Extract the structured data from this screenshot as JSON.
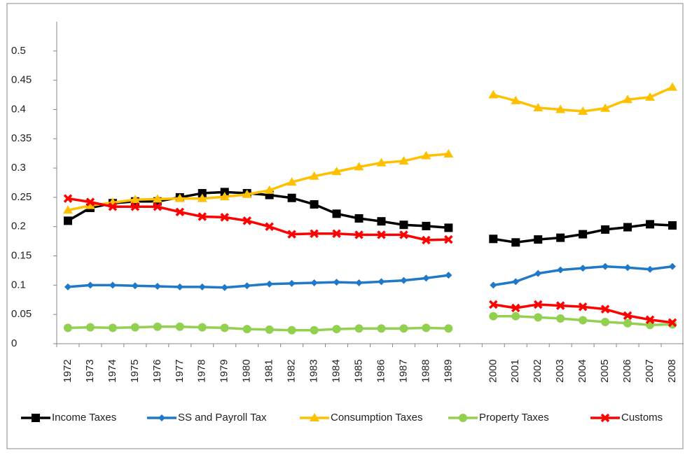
{
  "chart_data": {
    "type": "line",
    "categories": [
      "1972",
      "1973",
      "1974",
      "1975",
      "1976",
      "1977",
      "1978",
      "1979",
      "1980",
      "1981",
      "1982",
      "1983",
      "1984",
      "1985",
      "1986",
      "1987",
      "1988",
      "1989",
      null,
      "2000",
      "2001",
      "2002",
      "2003",
      "2004",
      "2005",
      "2006",
      "2007",
      "2008"
    ],
    "series": [
      {
        "name": "Income Taxes",
        "color": "#000000",
        "marker": "square",
        "values": [
          0.21,
          0.232,
          0.24,
          0.243,
          0.243,
          0.25,
          0.257,
          0.259,
          0.257,
          0.254,
          0.249,
          0.238,
          0.222,
          0.214,
          0.209,
          0.203,
          0.201,
          0.198,
          null,
          0.179,
          0.173,
          0.178,
          0.181,
          0.187,
          0.195,
          0.199,
          0.204,
          0.202
        ]
      },
      {
        "name": "SS and Payroll Tax",
        "color": "#1f78c8",
        "marker": "diamond",
        "values": [
          0.097,
          0.1,
          0.1,
          0.099,
          0.098,
          0.097,
          0.097,
          0.096,
          0.099,
          0.102,
          0.103,
          0.104,
          0.105,
          0.104,
          0.106,
          0.108,
          0.112,
          0.117,
          null,
          0.1,
          0.106,
          0.12,
          0.126,
          0.129,
          0.132,
          0.13,
          0.127,
          0.132
        ]
      },
      {
        "name": "Consumption Taxes",
        "color": "#ffc000",
        "marker": "triangle",
        "values": [
          0.228,
          0.236,
          0.241,
          0.246,
          0.247,
          0.248,
          0.248,
          0.251,
          0.255,
          0.262,
          0.276,
          0.286,
          0.294,
          0.302,
          0.309,
          0.312,
          0.321,
          0.324,
          null,
          0.425,
          0.415,
          0.403,
          0.4,
          0.397,
          0.402,
          0.417,
          0.421,
          0.438
        ]
      },
      {
        "name": "Property Taxes",
        "color": "#92d050",
        "marker": "circle",
        "values": [
          0.027,
          0.028,
          0.027,
          0.028,
          0.029,
          0.029,
          0.028,
          0.027,
          0.025,
          0.024,
          0.023,
          0.023,
          0.025,
          0.026,
          0.026,
          0.026,
          0.027,
          0.026,
          null,
          0.047,
          0.047,
          0.045,
          0.043,
          0.04,
          0.037,
          0.035,
          0.032,
          0.033
        ]
      },
      {
        "name": "Customs",
        "color": "#ff0000",
        "marker": "x",
        "values": [
          0.248,
          0.242,
          0.234,
          0.234,
          0.234,
          0.225,
          0.217,
          0.216,
          0.21,
          0.2,
          0.187,
          0.188,
          0.188,
          0.186,
          0.186,
          0.186,
          0.177,
          0.178,
          null,
          0.067,
          0.061,
          0.067,
          0.065,
          0.063,
          0.059,
          0.048,
          0.041,
          0.036
        ]
      }
    ],
    "ylim": [
      0,
      0.55
    ],
    "yticks": [
      0,
      0.05,
      0.1,
      0.15,
      0.2,
      0.25,
      0.3,
      0.35,
      0.4,
      0.45,
      0.5
    ],
    "grid": false,
    "legend": "bottom"
  }
}
